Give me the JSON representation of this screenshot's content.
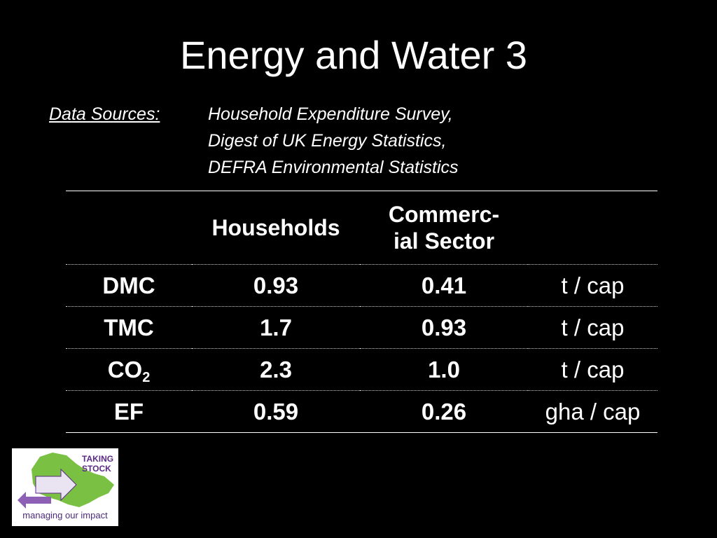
{
  "slide": {
    "title": "Energy and Water 3"
  },
  "sources": {
    "label": "Data Sources:",
    "items": [
      "Household Expenditure Survey,",
      "Digest of UK Energy Statistics,",
      "DEFRA Environmental Statistics"
    ]
  },
  "table": {
    "headers": [
      "",
      "Households",
      "Commerc-ial Sector",
      ""
    ],
    "header_commercial_line1": "Commerc-",
    "header_commercial_line2": "ial Sector",
    "rows": [
      {
        "label": "DMC",
        "households": "0.93",
        "commercial": "0.41",
        "unit": "t / cap"
      },
      {
        "label": "TMC",
        "households": "1.7",
        "commercial": "0.93",
        "unit": "t / cap"
      },
      {
        "label_main": "CO",
        "label_sub": "2",
        "households": "2.3",
        "commercial": "1.0",
        "unit": "t / cap"
      },
      {
        "label": "EF",
        "households": "0.59",
        "commercial": "0.26",
        "unit": "gha / cap"
      }
    ]
  },
  "logo": {
    "brand_line1": "TAKING",
    "brand_line2": "STOCK",
    "tagline": "managing our impact",
    "colors": {
      "green": "#7ac143",
      "purple": "#5b2a86",
      "arrow": "#b9a6d3"
    }
  }
}
